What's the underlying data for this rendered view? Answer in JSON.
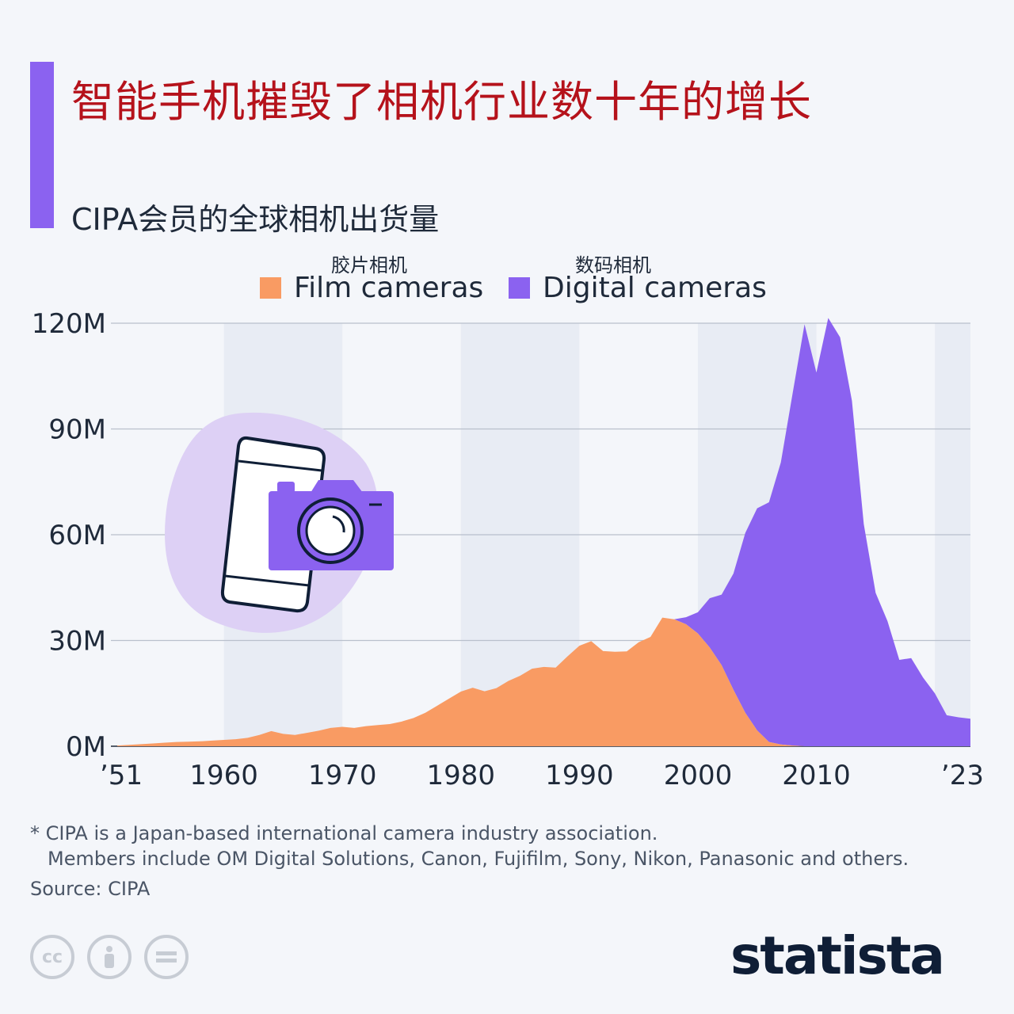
{
  "header": {
    "title": "智能手机摧毁了相机行业数十年的增长",
    "subtitle": "CIPA会员的全球相机出货量"
  },
  "legend": [
    {
      "cn": "胶片相机",
      "label": "Film cameras",
      "color": "#f99b63"
    },
    {
      "cn": "数码相机",
      "label": "Digital cameras",
      "color": "#8b62f0"
    }
  ],
  "colors": {
    "accent": "#8b62f0",
    "title": "#b5121b",
    "film": "#f99b63",
    "digital": "#8b62f0"
  },
  "chart_data": {
    "type": "area",
    "stacked": true,
    "ylim": [
      0,
      120
    ],
    "yticks": [
      "0M",
      "30M",
      "60M",
      "90M",
      "120M"
    ],
    "ytick_values": [
      0,
      30,
      60,
      90,
      120
    ],
    "xlim": [
      1951,
      2023
    ],
    "xticks": [
      "’51",
      "1960",
      "1970",
      "1980",
      "1990",
      "2000",
      "2010",
      "’23"
    ],
    "xtick_values": [
      1951,
      1960,
      1970,
      1980,
      1990,
      2000,
      2010,
      2023
    ],
    "grid": true,
    "legend_position": "top",
    "x": [
      1951,
      1952,
      1953,
      1954,
      1955,
      1956,
      1957,
      1958,
      1959,
      1960,
      1961,
      1962,
      1963,
      1964,
      1965,
      1966,
      1967,
      1968,
      1969,
      1970,
      1971,
      1972,
      1973,
      1974,
      1975,
      1976,
      1977,
      1978,
      1979,
      1980,
      1981,
      1982,
      1983,
      1984,
      1985,
      1986,
      1987,
      1988,
      1989,
      1990,
      1991,
      1992,
      1993,
      1994,
      1995,
      1996,
      1997,
      1998,
      1999,
      2000,
      2001,
      2002,
      2003,
      2004,
      2005,
      2006,
      2007,
      2008,
      2009,
      2010,
      2011,
      2012,
      2013,
      2014,
      2015,
      2016,
      2017,
      2018,
      2019,
      2020,
      2021,
      2022,
      2023
    ],
    "series": [
      {
        "name": "Film cameras",
        "values": [
          0.2,
          0.4,
          0.6,
          0.8,
          1.0,
          1.2,
          1.3,
          1.4,
          1.6,
          1.8,
          2.0,
          2.4,
          3.2,
          4.3,
          3.5,
          3.2,
          3.8,
          4.4,
          5.2,
          5.5,
          5.2,
          5.7,
          6.0,
          6.3,
          7.0,
          8.0,
          9.5,
          11.5,
          13.5,
          15.5,
          16.6,
          15.6,
          16.5,
          18.5,
          20.0,
          22.0,
          22.5,
          22.3,
          25.5,
          28.5,
          29.8,
          27.0,
          26.8,
          26.9,
          29.5,
          31.0,
          36.5,
          36.0,
          34.6,
          32.0,
          28.0,
          23.0,
          16.0,
          9.5,
          4.5,
          1.2,
          0.5,
          0.2,
          0.0,
          0.0,
          0.0,
          0.0,
          0.0,
          0.0,
          0.0,
          0.0,
          0.0,
          0.0,
          0.0,
          0.0,
          0.0,
          0.0,
          0.0
        ]
      },
      {
        "name": "Digital cameras",
        "values": [
          0,
          0,
          0,
          0,
          0,
          0,
          0,
          0,
          0,
          0,
          0,
          0,
          0,
          0,
          0,
          0,
          0,
          0,
          0,
          0,
          0,
          0,
          0,
          0,
          0,
          0,
          0,
          0,
          0,
          0,
          0,
          0,
          0,
          0,
          0,
          0,
          0,
          0,
          0,
          0,
          0,
          0,
          0,
          0,
          0,
          0,
          0,
          0,
          2.0,
          6.0,
          14.0,
          20.0,
          33.0,
          51.0,
          63.0,
          68.0,
          80.0,
          100.0,
          119.7,
          106.0,
          121.5,
          116.0,
          98.0,
          63.0,
          43.5,
          35.5,
          24.5,
          25.0,
          19.5,
          15.0,
          8.8,
          8.2,
          7.8
        ]
      }
    ]
  },
  "footnote": {
    "line1": "* CIPA is a Japan-based international camera industry association.",
    "line2": "Members include OM Digital Solutions, Canon, Fujifilm, Sony, Nikon, Panasonic and others."
  },
  "source": "Source: CIPA",
  "branding": {
    "logo": "statista"
  },
  "license_icons": [
    "creative-commons-icon",
    "attribution-icon",
    "no-derivatives-icon"
  ]
}
